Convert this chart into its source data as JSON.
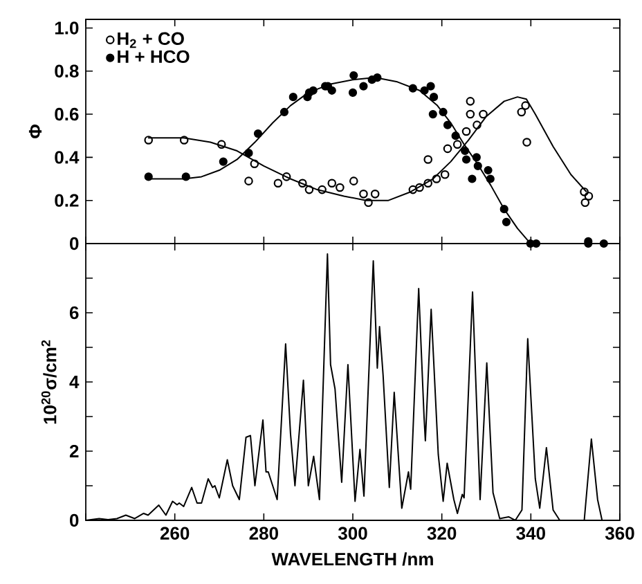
{
  "chart_data": [
    {
      "type": "scatter",
      "ylabel": "Φ",
      "xlim": [
        240,
        360
      ],
      "ylim": [
        0,
        1.04
      ],
      "xticks": [
        240,
        260,
        280,
        300,
        320,
        340,
        360
      ],
      "yticks": [
        0,
        0.2,
        0.4,
        0.6,
        0.8,
        {
          "value": 1,
          "label": "1.0"
        }
      ],
      "tick_labels": "y",
      "legend": "top left",
      "marker": "circle",
      "series": [
        {
          "name": "H$_{2}$ + CO",
          "color": "#000000",
          "x": [
            254.1,
            262.1,
            270.5,
            276.6,
            277.9,
            283.2,
            285.1,
            288.7,
            290.2,
            293.1,
            295.3,
            297.1,
            300.2,
            302.4,
            303.5,
            305.0,
            313.5,
            315.0,
            316.9,
            316.9,
            318.8,
            320.7,
            321.3,
            323.5,
            325.5,
            326.4,
            326.4,
            327.9,
            329.3,
            337.9,
            338.8,
            339.1,
            352.0,
            353.0,
            352.2
          ],
          "values": [
            0.48,
            0.48,
            0.46,
            0.29,
            0.37,
            0.28,
            0.31,
            0.28,
            0.25,
            0.25,
            0.28,
            0.26,
            0.29,
            0.23,
            0.19,
            0.23,
            0.25,
            0.26,
            0.39,
            0.28,
            0.3,
            0.32,
            0.44,
            0.46,
            0.52,
            0.66,
            0.6,
            0.55,
            0.6,
            0.61,
            0.64,
            0.47,
            0.24,
            0.22,
            0.19
          ]
        },
        {
          "name": "H + HCO",
          "color": "#000000",
          "x": [
            254.1,
            262.5,
            270.9,
            276.6,
            278.7,
            284.6,
            286.6,
            289.8,
            290.2,
            291.1,
            293.8,
            294.4,
            295.3,
            300.0,
            300.2,
            302.4,
            304.3,
            305.5,
            313.5,
            316.1,
            317.5,
            318.2,
            318.0,
            320.3,
            321.3,
            323.1,
            325.2,
            325.5,
            327.8,
            328.1,
            326.8,
            330.4,
            330.9,
            334.0,
            334.5,
            339.9,
            341.2,
            352.9,
            352.9,
            356.4
          ],
          "values": [
            0.31,
            0.31,
            0.38,
            0.42,
            0.51,
            0.61,
            0.68,
            0.68,
            0.7,
            0.71,
            0.73,
            0.73,
            0.71,
            0.7,
            0.78,
            0.73,
            0.76,
            0.77,
            0.72,
            0.71,
            0.73,
            0.68,
            0.6,
            0.61,
            0.55,
            0.5,
            0.43,
            0.39,
            0.4,
            0.36,
            0.3,
            0.34,
            0.3,
            0.16,
            0.1,
            0.0,
            0.0,
            0.01,
            0.0,
            0.0
          ]
        },
        {
          "type": "line",
          "marker": "none",
          "color": "#000000",
          "x": [
            254,
            262,
            268,
            274,
            280,
            286,
            292,
            298,
            303,
            308,
            313,
            318,
            322,
            326,
            330,
            334,
            337,
            339,
            341,
            345,
            349,
            352.5
          ],
          "values": [
            0.49,
            0.49,
            0.47,
            0.43,
            0.36,
            0.3,
            0.25,
            0.22,
            0.2,
            0.2,
            0.24,
            0.3,
            0.38,
            0.48,
            0.59,
            0.66,
            0.68,
            0.67,
            0.6,
            0.45,
            0.32,
            0.24
          ]
        },
        {
          "type": "line",
          "marker": "none",
          "color": "#000000",
          "x": [
            254,
            262,
            266,
            270,
            274,
            278,
            282,
            286,
            290,
            295,
            300,
            305,
            310,
            315,
            319,
            322,
            325,
            328,
            331,
            334,
            337,
            339.9
          ],
          "values": [
            0.3,
            0.3,
            0.31,
            0.34,
            0.39,
            0.47,
            0.56,
            0.64,
            0.7,
            0.74,
            0.76,
            0.77,
            0.75,
            0.71,
            0.64,
            0.56,
            0.46,
            0.37,
            0.27,
            0.16,
            0.07,
            0.0
          ]
        }
      ]
    },
    {
      "type": "line",
      "xlabel": "WAVELENGTH /nm",
      "ylabel": "10$^{20}$σ/cm$^{2}$",
      "xlim": [
        240,
        360
      ],
      "ylim": [
        0,
        8
      ],
      "xticks": [
        {
          "value": 240,
          "label": null
        },
        260,
        280,
        300,
        320,
        340,
        360
      ],
      "yticks": [
        0,
        {
          "value": 1,
          "label": null
        },
        2,
        {
          "value": 3,
          "label": null
        },
        4,
        {
          "value": 5,
          "label": null
        },
        6,
        {
          "value": 7,
          "label": null
        }
      ],
      "series": [
        {
          "color": "#000000",
          "x": [
            240,
            243,
            245,
            247,
            249,
            251,
            253,
            254,
            256.4,
            258,
            259.5,
            260.5,
            261,
            262,
            263.8,
            265,
            266,
            267.5,
            268.5,
            269,
            270,
            271.8,
            273,
            274.5,
            276,
            277,
            278,
            279.8,
            280.5,
            281,
            282,
            283,
            284.9,
            286,
            287,
            288.9,
            290,
            291.2,
            292.5,
            294.3,
            295,
            296,
            297.5,
            298.9,
            300.5,
            301.6,
            302.5,
            304.6,
            305.5,
            306,
            306.8,
            308.2,
            309.3,
            311,
            312.5,
            313,
            314.8,
            316,
            316.3,
            317.6,
            319.2,
            320.3,
            321.2,
            322.7,
            323.5,
            324.6,
            325,
            326.9,
            328.6,
            330.1,
            331.5,
            333,
            335,
            336.5,
            338,
            339.3,
            341,
            342,
            343.5,
            345,
            346.5,
            350,
            352,
            353.6,
            355,
            356,
            358
          ],
          "values": [
            0,
            0.05,
            0.02,
            0.05,
            0.15,
            0.05,
            0.2,
            0.15,
            0.44,
            0.15,
            0.55,
            0.45,
            0.5,
            0.4,
            0.95,
            0.5,
            0.5,
            1.2,
            0.95,
            1.0,
            0.65,
            1.75,
            1.0,
            0.6,
            2.4,
            2.45,
            1.0,
            2.9,
            1.4,
            1.4,
            1.0,
            0.6,
            5.1,
            2.5,
            1.0,
            4.05,
            1.0,
            1.85,
            0.6,
            7.7,
            4.5,
            3.8,
            1.1,
            4.5,
            0.55,
            2.05,
            0.7,
            7.5,
            4.4,
            5.6,
            4.2,
            0.95,
            3.7,
            0.35,
            1.4,
            0.9,
            6.7,
            3.0,
            2.3,
            6.1,
            1.9,
            0.55,
            1.65,
            0.6,
            0.2,
            0.75,
            0.65,
            6.6,
            0.6,
            4.55,
            0.8,
            0.05,
            0.1,
            0,
            0.3,
            5.25,
            1.2,
            0.35,
            2.1,
            0.3,
            0,
            0,
            0,
            2.35,
            0.6,
            0,
            0
          ]
        }
      ]
    }
  ]
}
